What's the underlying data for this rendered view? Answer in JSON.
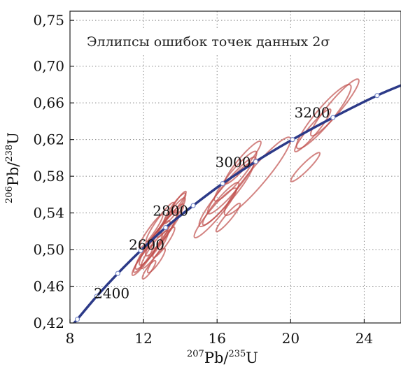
{
  "chart_data": {
    "type": "scatter",
    "title": "Эллипсы ошибок точек данных 2σ",
    "xlabel": {
      "sup1": "207",
      "main1": "Pb/",
      "sup2": "235",
      "main2": "U"
    },
    "ylabel": {
      "sup1": "206",
      "main1": "Pb/",
      "sup2": "238",
      "main2": "U"
    },
    "xlim": [
      8,
      26
    ],
    "ylim": [
      0.42,
      0.76
    ],
    "x_ticks": [
      {
        "v": 8,
        "label": "8"
      },
      {
        "v": 12,
        "label": "12"
      },
      {
        "v": 16,
        "label": "16"
      },
      {
        "v": 20,
        "label": "20"
      },
      {
        "v": 24,
        "label": "24"
      }
    ],
    "y_ticks": [
      {
        "v": 0.42,
        "label": "0,42"
      },
      {
        "v": 0.46,
        "label": "0,46"
      },
      {
        "v": 0.5,
        "label": "0,50"
      },
      {
        "v": 0.54,
        "label": "0,54"
      },
      {
        "v": 0.58,
        "label": "0,58"
      },
      {
        "v": 0.62,
        "label": "0,62"
      },
      {
        "v": 0.66,
        "label": "0,66"
      },
      {
        "v": 0.7,
        "label": "0,70"
      },
      {
        "v": 0.75,
        "label": "0,75"
      }
    ],
    "grid": true,
    "concordia_age_labels": [
      {
        "text": "2400",
        "x": 9.3,
        "y": 0.447
      },
      {
        "text": "2600",
        "x": 11.2,
        "y": 0.5
      },
      {
        "text": "2800",
        "x": 12.5,
        "y": 0.537
      },
      {
        "text": "3000",
        "x": 15.9,
        "y": 0.59
      },
      {
        "text": "3200",
        "x": 20.2,
        "y": 0.644
      }
    ],
    "concordia_markers": [
      {
        "x": 8.4,
        "y": 0.424
      },
      {
        "x": 9.45,
        "y": 0.449
      },
      {
        "x": 10.6,
        "y": 0.474
      },
      {
        "x": 11.85,
        "y": 0.499
      },
      {
        "x": 13.2,
        "y": 0.524
      },
      {
        "x": 14.7,
        "y": 0.548
      },
      {
        "x": 16.3,
        "y": 0.572
      },
      {
        "x": 18.1,
        "y": 0.596
      },
      {
        "x": 20.1,
        "y": 0.62
      },
      {
        "x": 22.3,
        "y": 0.644
      },
      {
        "x": 24.7,
        "y": 0.668
      }
    ],
    "error_ellipses": [
      {
        "cx": 12.2,
        "cy": 0.495,
        "rx": 0.45,
        "ry": 0.028,
        "rot": -55
      },
      {
        "cx": 12.5,
        "cy": 0.505,
        "rx": 0.55,
        "ry": 0.032,
        "rot": -55
      },
      {
        "cx": 12.8,
        "cy": 0.512,
        "rx": 0.6,
        "ry": 0.035,
        "rot": -55
      },
      {
        "cx": 13.0,
        "cy": 0.518,
        "rx": 0.55,
        "ry": 0.03,
        "rot": -55
      },
      {
        "cx": 12.6,
        "cy": 0.5,
        "rx": 0.5,
        "ry": 0.025,
        "rot": -55
      },
      {
        "cx": 13.3,
        "cy": 0.525,
        "rx": 0.5,
        "ry": 0.03,
        "rot": -55
      },
      {
        "cx": 12.9,
        "cy": 0.53,
        "rx": 0.4,
        "ry": 0.026,
        "rot": -55
      },
      {
        "cx": 13.5,
        "cy": 0.535,
        "rx": 0.45,
        "ry": 0.026,
        "rot": -55
      },
      {
        "cx": 12.4,
        "cy": 0.52,
        "rx": 0.35,
        "ry": 0.022,
        "rot": -55
      },
      {
        "cx": 13.1,
        "cy": 0.508,
        "rx": 0.4,
        "ry": 0.02,
        "rot": -55
      },
      {
        "cx": 12.0,
        "cy": 0.49,
        "rx": 0.35,
        "ry": 0.018,
        "rot": -55
      },
      {
        "cx": 13.7,
        "cy": 0.545,
        "rx": 0.4,
        "ry": 0.02,
        "rot": -55
      },
      {
        "cx": 13.9,
        "cy": 0.552,
        "rx": 0.25,
        "ry": 0.014,
        "rot": -55
      },
      {
        "cx": 12.7,
        "cy": 0.488,
        "rx": 0.35,
        "ry": 0.016,
        "rot": -55
      },
      {
        "cx": 12.3,
        "cy": 0.478,
        "rx": 0.28,
        "ry": 0.012,
        "rot": -55
      },
      {
        "cx": 16.5,
        "cy": 0.56,
        "rx": 0.8,
        "ry": 0.045,
        "rot": -50
      },
      {
        "cx": 16.8,
        "cy": 0.57,
        "rx": 0.7,
        "ry": 0.04,
        "rot": -50
      },
      {
        "cx": 17.0,
        "cy": 0.58,
        "rx": 0.65,
        "ry": 0.035,
        "rot": -50
      },
      {
        "cx": 15.9,
        "cy": 0.54,
        "rx": 0.6,
        "ry": 0.035,
        "rot": -50
      },
      {
        "cx": 16.2,
        "cy": 0.55,
        "rx": 0.55,
        "ry": 0.03,
        "rot": -50
      },
      {
        "cx": 17.4,
        "cy": 0.595,
        "rx": 0.55,
        "ry": 0.03,
        "rot": -50
      },
      {
        "cx": 16.6,
        "cy": 0.535,
        "rx": 0.35,
        "ry": 0.02,
        "rot": -50
      },
      {
        "cx": 18.2,
        "cy": 0.58,
        "rx": 0.95,
        "ry": 0.055,
        "rot": -50
      },
      {
        "cx": 21.8,
        "cy": 0.645,
        "rx": 0.9,
        "ry": 0.045,
        "rot": -50
      },
      {
        "cx": 22.4,
        "cy": 0.655,
        "rx": 0.7,
        "ry": 0.04,
        "rot": -50
      },
      {
        "cx": 21.2,
        "cy": 0.63,
        "rx": 0.5,
        "ry": 0.03,
        "rot": -50
      },
      {
        "cx": 20.8,
        "cy": 0.59,
        "rx": 0.4,
        "ry": 0.022,
        "rot": -45
      }
    ]
  },
  "colors": {
    "concordia": "#2c3a88",
    "ellipse": "#c0504d",
    "marker": "#7a8bc8"
  }
}
